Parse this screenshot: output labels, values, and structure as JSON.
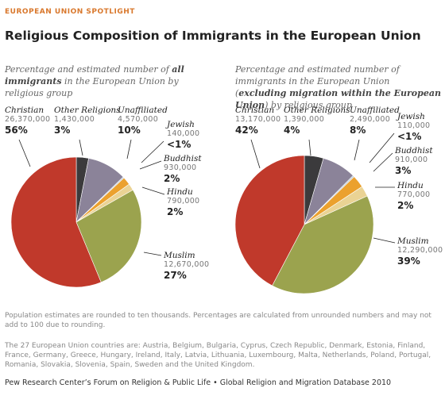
{
  "header": {
    "kicker": "EUROPEAN UNION SPOTLIGHT",
    "title": "Religious Composition of Immigrants in the European Union"
  },
  "chart_data": [
    {
      "type": "pie",
      "subtitle": [
        "Percentage and estimated number of ",
        "all immigrants",
        " in the European Union by religious group"
      ],
      "categories": [
        "Other Religions",
        "Unaffiliated",
        "Jewish",
        "Buddhist",
        "Hindu",
        "Muslim",
        "Christian"
      ],
      "values": [
        3,
        10,
        0.3,
        2,
        2,
        27,
        56
      ],
      "value_labels": [
        "3%",
        "10%",
        "<1%",
        "2%",
        "2%",
        "27%",
        "56%"
      ],
      "estimates": [
        1430000,
        4570000,
        140000,
        930000,
        790000,
        12670000,
        26370000
      ],
      "estimate_labels": [
        "1,430,000",
        "4,570,000",
        "140,000",
        "930,000",
        "790,000",
        "12,670,000",
        "26,370,000"
      ],
      "colors": [
        "#3b3a3c",
        "#8b8399",
        "#b9cad6",
        "#eba12e",
        "#ead394",
        "#9ba34e",
        "#c0392b"
      ]
    },
    {
      "type": "pie",
      "subtitle": [
        "Percentage and estimated number of immigrants in the European Union (",
        "excluding migration within the European Union",
        ") by religious group"
      ],
      "categories": [
        "Other Religions",
        "Unaffiliated",
        "Jewish",
        "Buddhist",
        "Hindu",
        "Muslim",
        "Christian"
      ],
      "values": [
        4,
        8,
        0.4,
        3,
        2,
        39,
        42
      ],
      "value_labels": [
        "4%",
        "8%",
        "<1%",
        "3%",
        "2%",
        "39%",
        "42%"
      ],
      "estimates": [
        1390000,
        2490000,
        110000,
        910000,
        770000,
        12290000,
        13170000
      ],
      "estimate_labels": [
        "1,390,000",
        "2,490,000",
        "110,000",
        "910,000",
        "770,000",
        "12,290,000",
        "13,170,000"
      ],
      "colors": [
        "#3b3a3c",
        "#8b8399",
        "#b9cad6",
        "#eba12e",
        "#ead394",
        "#9ba34e",
        "#c0392b"
      ]
    }
  ],
  "notes": [
    "Population estimates are rounded to ten thousands. Percentages are calculated from unrounded numbers and may not add to 100 due to rounding.",
    "The 27 European Union countries are: Austria, Belgium, Bulgaria, Cyprus, Czech Republic, Denmark, Estonia, Finland, France, Germany, Greece, Hungary, Ireland, Italy, Latvia, Lithuania, Luxembourg, Malta, Netherlands, Poland, Portugal, Romania, Slovakia, Slovenia, Spain, Sweden and the United Kingdom.",
    "Pew Research Center’s Forum on Religion & Public Life • Global Religion and Migration Database 2010"
  ]
}
